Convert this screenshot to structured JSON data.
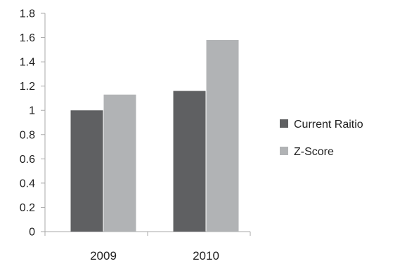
{
  "chart_data": {
    "type": "bar",
    "title": "",
    "xlabel": "",
    "ylabel": "",
    "categories": [
      "2009",
      "2010"
    ],
    "series": [
      {
        "name": "Current Raitio",
        "values": [
          1.0,
          1.16
        ],
        "color": "#5f6062"
      },
      {
        "name": "Z-Score",
        "values": [
          1.13,
          1.58
        ],
        "color": "#b1b3b5"
      }
    ],
    "ylim": [
      0,
      1.8
    ],
    "yticks": [
      0,
      0.2,
      0.4,
      0.6,
      0.8,
      1,
      1.2,
      1.4,
      1.6,
      1.8
    ],
    "ytick_labels": [
      "0",
      "0.2",
      "0.4",
      "0.6",
      "0.8",
      "1",
      "1.2",
      "1.4",
      "1.6",
      "1.8"
    ],
    "grid": false,
    "legend_position": "right"
  }
}
